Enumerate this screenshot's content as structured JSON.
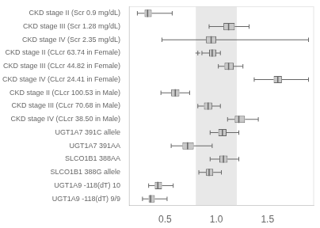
{
  "chart_data": {
    "type": "boxplot",
    "orientation": "horizontal",
    "categories": [
      "CKD stage II (Scr 0.9 mg/dL)",
      "CKD stage III (Scr 1.28 mg/dL)",
      "CKD stage IV (Scr 2.35 mg/dL)",
      "CKD stage II (CLcr 63.74 in Female)",
      "CKD stage III (CLcr 44.82 in Female)",
      "CKD stage IV (CLcr 24.41 in Female)",
      "CKD stage II (CLcr 100.53 in Male)",
      "CKD stage III (CLcr 70.68 in Male)",
      "CKD stage IV (CLcr 38.50 in Male)",
      "UGT1A7 391C allele",
      "UGT1A7 391AA",
      "SLCO1B1 388AA",
      "SLCO1B1 388G allele",
      "UGT1A9 -118(dT) 10",
      "UGT1A9 -118(dT) 9/9"
    ],
    "boxes": [
      {
        "whislo": 0.23,
        "q1": 0.3,
        "med": 0.33,
        "q3": 0.37,
        "whishi": 0.57
      },
      {
        "whislo": 0.93,
        "q1": 1.07,
        "med": 1.12,
        "q3": 1.18,
        "whishi": 1.32
      },
      {
        "whislo": 0.47,
        "q1": 0.9,
        "med": 0.95,
        "q3": 1.0,
        "whishi": 1.9
      },
      {
        "whislo": 0.86,
        "q1": 0.93,
        "med": 0.96,
        "q3": 1.0,
        "whishi": 1.04,
        "fliers": [
          0.82
        ]
      },
      {
        "whislo": 1.02,
        "q1": 1.08,
        "med": 1.12,
        "q3": 1.17,
        "whishi": 1.26
      },
      {
        "whislo": 1.37,
        "q1": 1.56,
        "med": 1.6,
        "q3": 1.64,
        "whishi": 1.9
      },
      {
        "whislo": 0.46,
        "q1": 0.56,
        "med": 0.6,
        "q3": 0.64,
        "whishi": 0.74
      },
      {
        "whislo": 0.82,
        "q1": 0.88,
        "med": 0.92,
        "q3": 0.96,
        "whishi": 1.04
      },
      {
        "whislo": 1.11,
        "q1": 1.18,
        "med": 1.22,
        "q3": 1.28,
        "whishi": 1.41
      },
      {
        "whislo": 0.94,
        "q1": 1.02,
        "med": 1.06,
        "q3": 1.1,
        "whishi": 1.22
      },
      {
        "whislo": 0.56,
        "q1": 0.67,
        "med": 0.72,
        "q3": 0.78,
        "whishi": 0.96
      },
      {
        "whislo": 0.94,
        "q1": 1.03,
        "med": 1.07,
        "q3": 1.11,
        "whishi": 1.22
      },
      {
        "whislo": 0.83,
        "q1": 0.9,
        "med": 0.93,
        "q3": 0.97,
        "whishi": 1.05
      },
      {
        "whislo": 0.34,
        "q1": 0.4,
        "med": 0.43,
        "q3": 0.47,
        "whishi": 0.58
      },
      {
        "whislo": 0.28,
        "q1": 0.34,
        "med": 0.36,
        "q3": 0.4,
        "whishi": 0.52
      }
    ],
    "color": "#c8c8c8",
    "span": {
      "xmin": 0.8,
      "xmax": 1.2,
      "color": "#e8e8e8"
    },
    "xlim": [
      0.15,
      1.95
    ],
    "xticks": [
      0.5,
      {
        "value": 1.0,
        "label": "1.0"
      },
      1.5
    ],
    "grid": false,
    "tick_labels": true
  }
}
